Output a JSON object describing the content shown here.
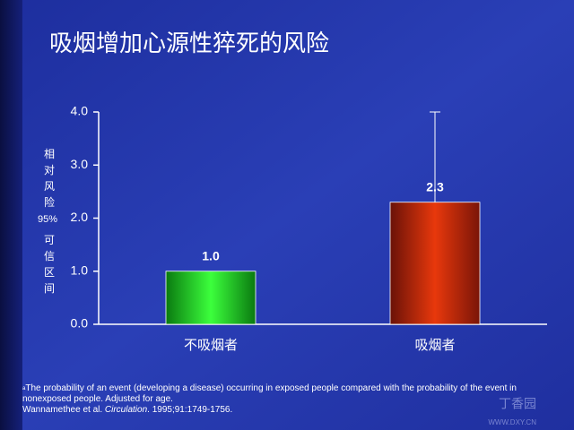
{
  "chart_data": {
    "type": "bar",
    "title": "吸烟增加心源性猝死的风险",
    "ylabel_lines": [
      "相",
      "对",
      "风",
      "险",
      "95%",
      "可",
      "信",
      "区",
      "间"
    ],
    "categories": [
      "不吸烟者",
      "吸烟者"
    ],
    "values": [
      1.0,
      2.3
    ],
    "value_labels": [
      "1.0",
      "2.3"
    ],
    "ci_upper": [
      null,
      4.0
    ],
    "colors": [
      "green",
      "red"
    ],
    "ylim": [
      0,
      4
    ],
    "yticks": [
      {
        "value": 0,
        "label": "0.0"
      },
      {
        "value": 1,
        "label": "1.0"
      },
      {
        "value": 2,
        "label": "2.0"
      },
      {
        "value": 3,
        "label": "3.0"
      },
      {
        "value": 4,
        "label": "4.0"
      }
    ],
    "grid": false,
    "footnote_marker": "a",
    "footnote": "The probability of an event (developing a disease) occurring in exposed people compared with the probability of the event in nonexposed people. Adjusted for age.",
    "citation": [
      "Wannamethee et al. ",
      "Circulation",
      ". 1995;91:1749-1756."
    ],
    "watermark": [
      "丁香园",
      "WWW.DXY.CN"
    ]
  }
}
